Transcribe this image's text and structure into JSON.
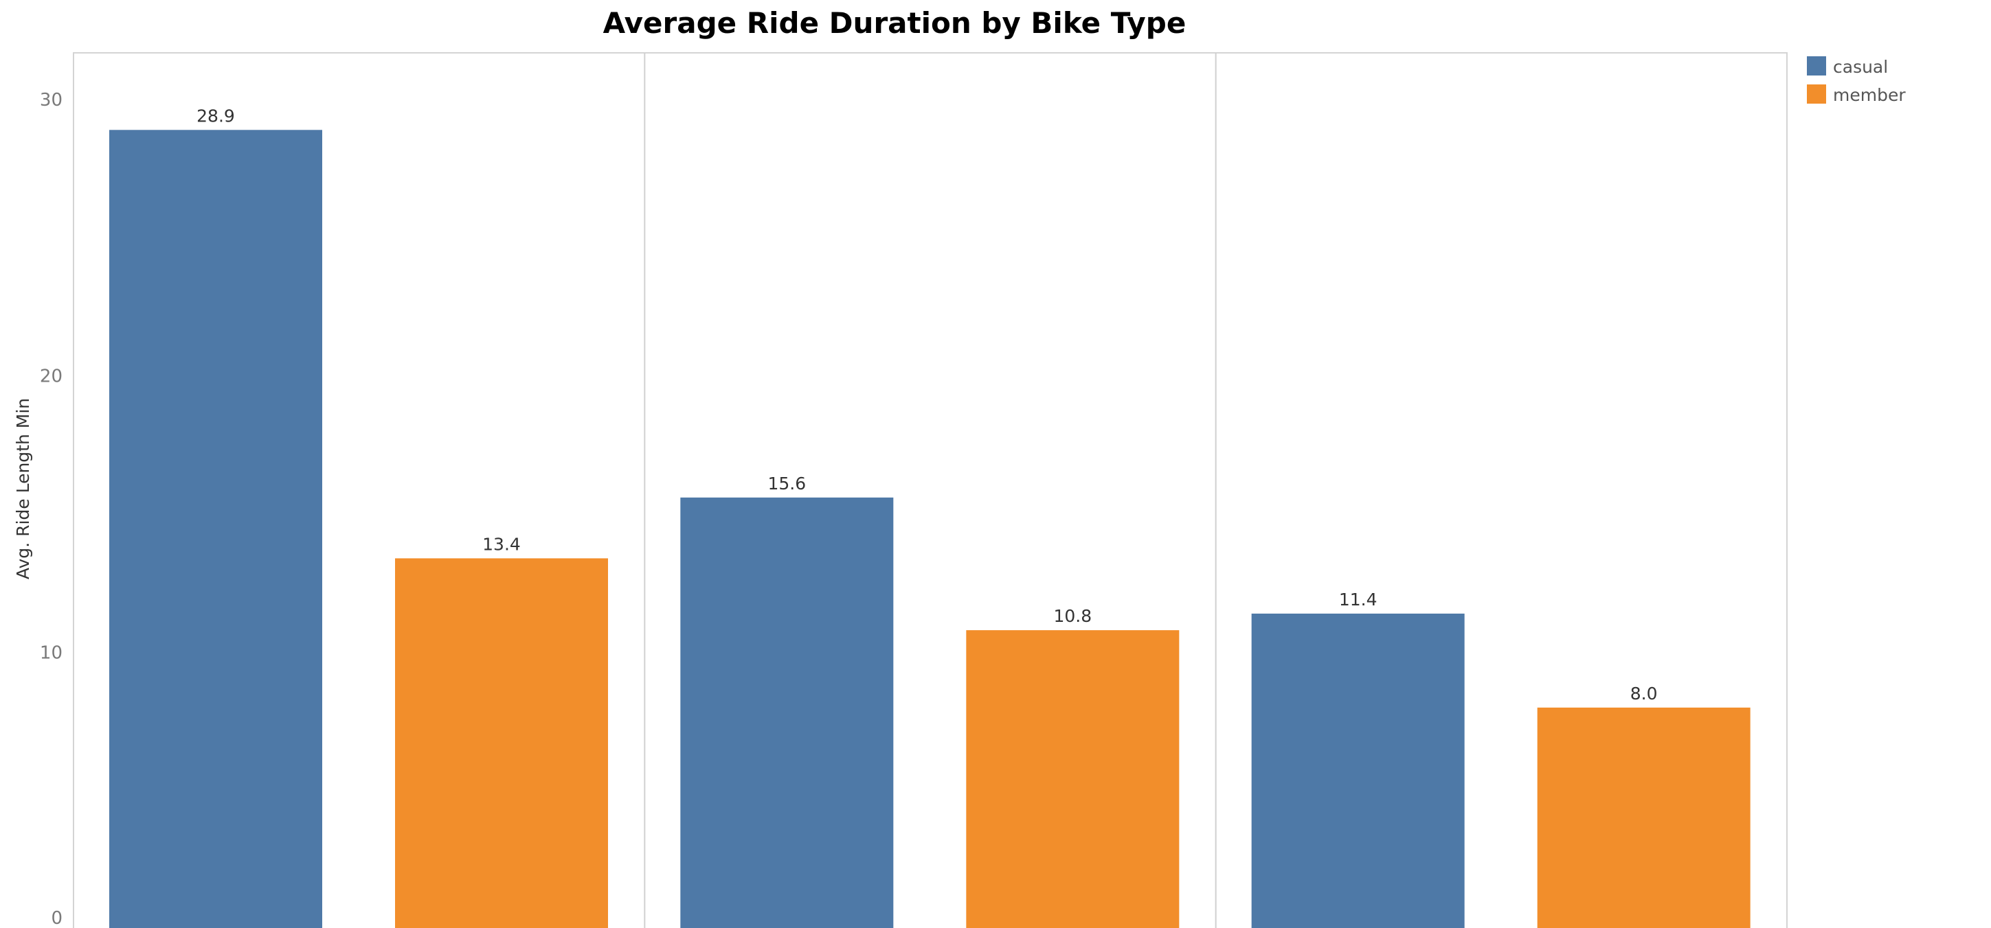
{
  "chart_data": {
    "type": "bar",
    "title": "Average Ride Duration by Bike Type",
    "ylabel": "Avg. Ride Length Min",
    "xlabel": "",
    "ylim": [
      0,
      31
    ],
    "yticks": [
      0,
      10,
      20,
      30
    ],
    "grid": false,
    "legend_position": "top-right",
    "panel_count": 3,
    "series": [
      {
        "name": "casual",
        "color": "#4e79a7",
        "values": [
          28.9,
          15.6,
          11.4
        ]
      },
      {
        "name": "member",
        "color": "#f28e2b",
        "values": [
          13.4,
          10.8,
          8.0
        ]
      }
    ],
    "value_labels": [
      [
        "28.9",
        "15.6",
        "11.4"
      ],
      [
        "13.4",
        "10.8",
        "8.0"
      ]
    ]
  }
}
